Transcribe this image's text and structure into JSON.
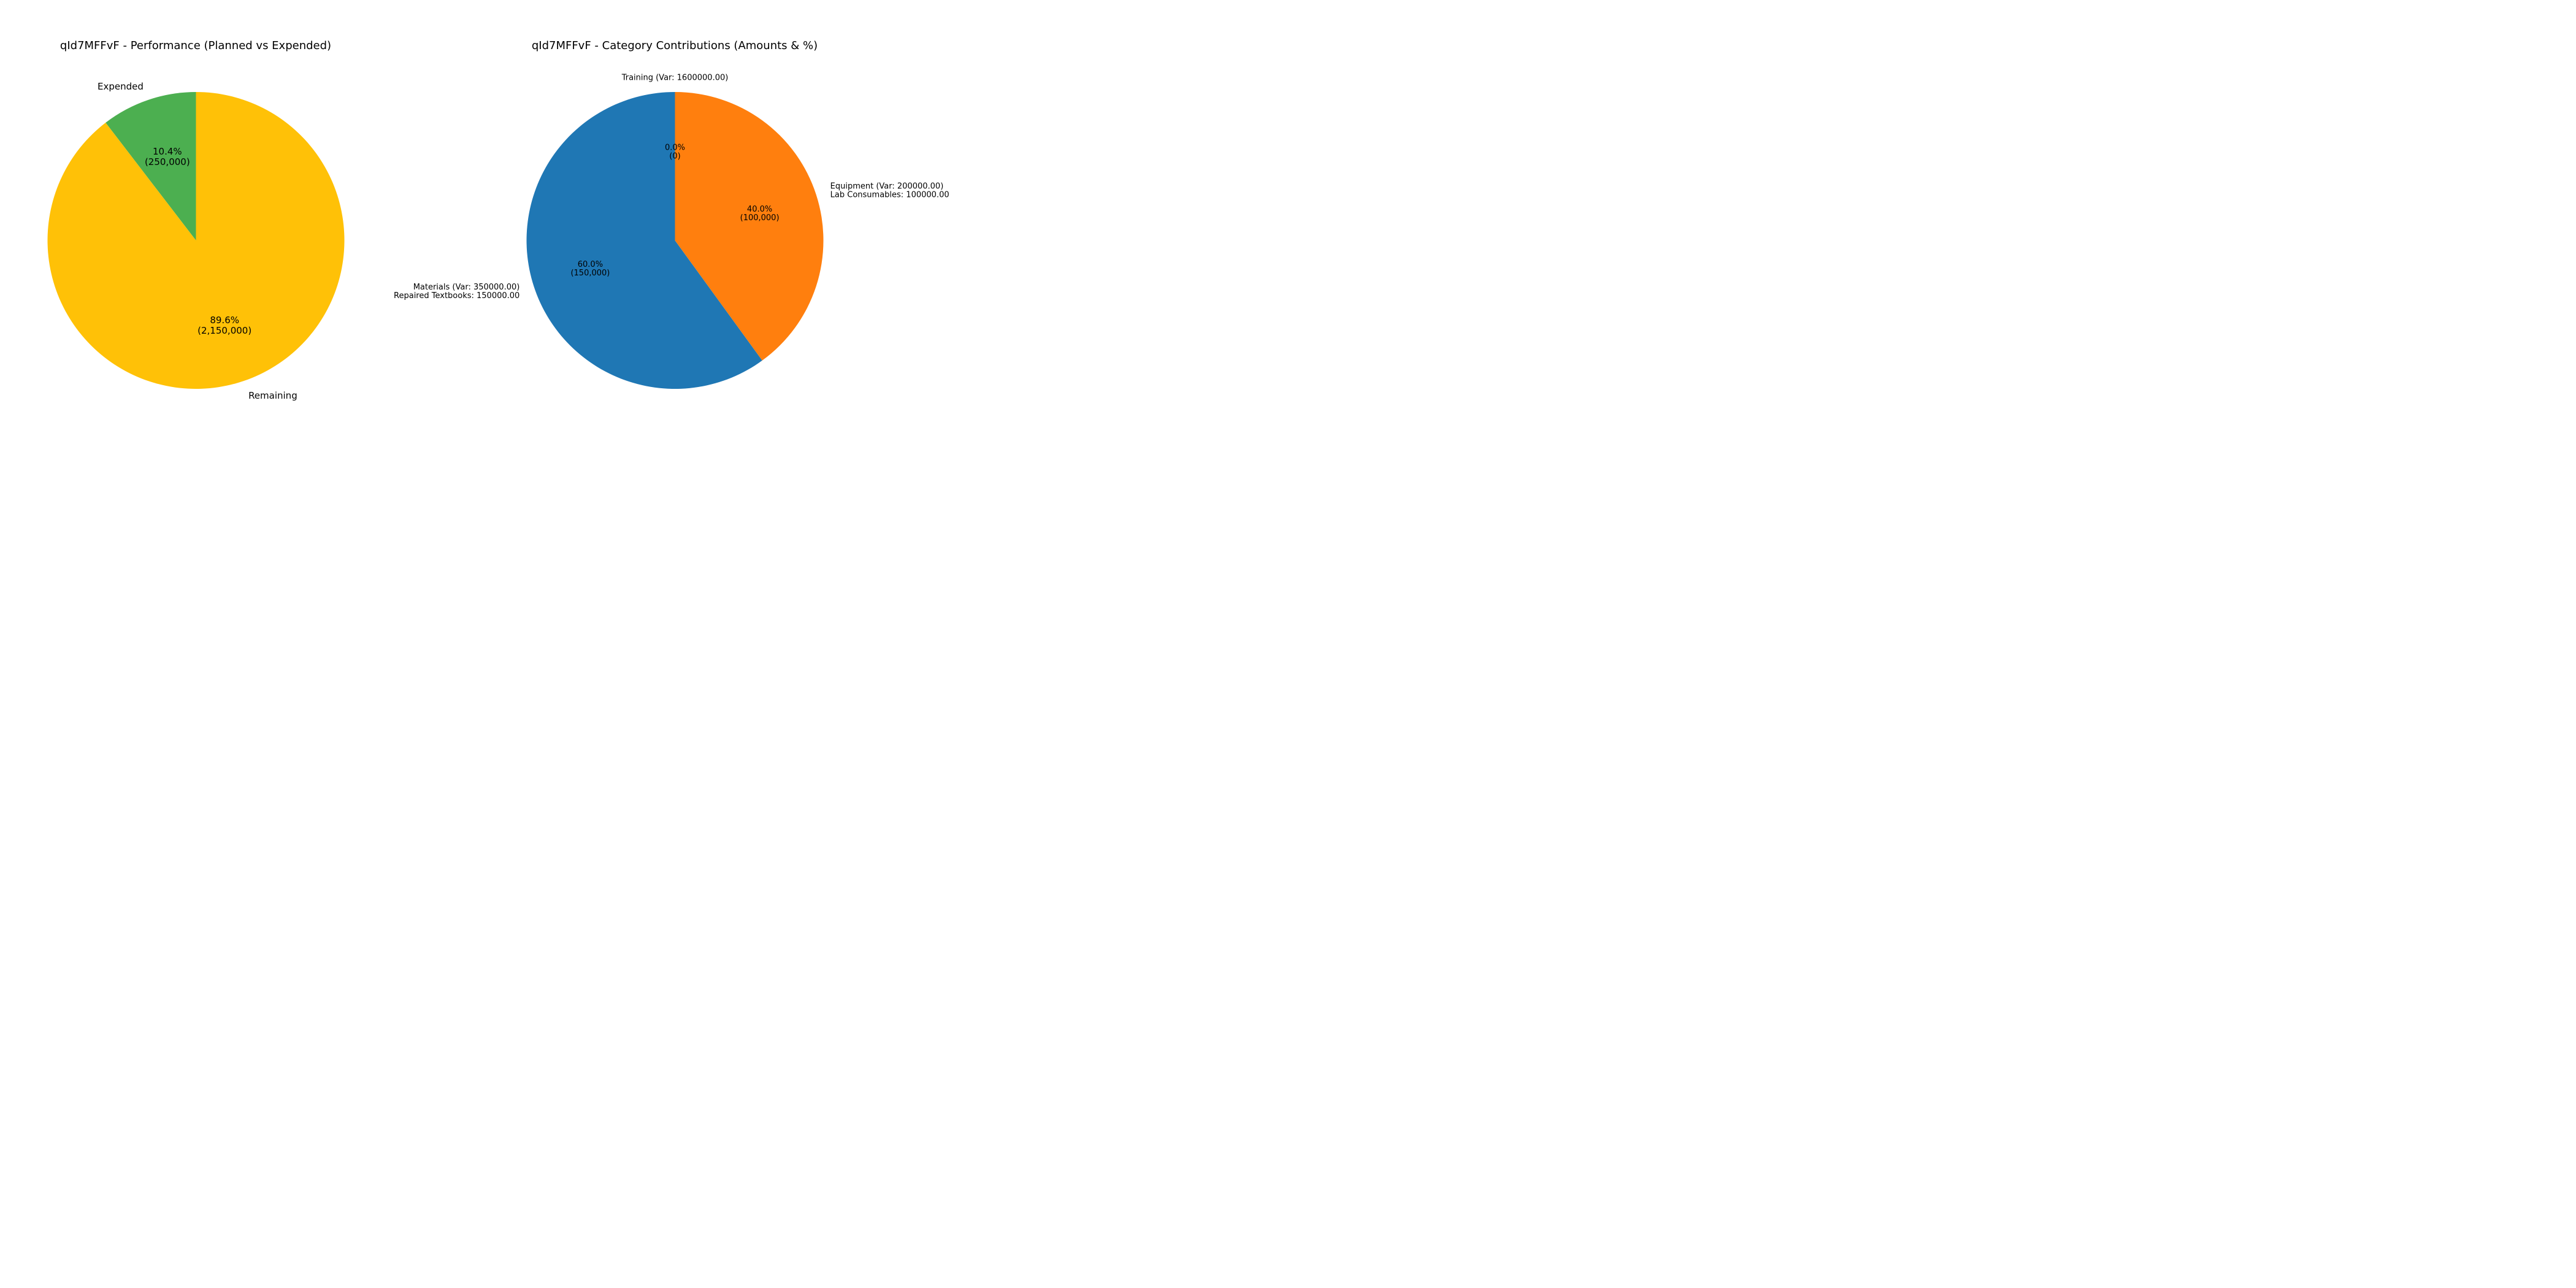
{
  "chart_data": [
    {
      "type": "pie",
      "title": "qId7MFFvF - Performance (Planned vs Expended)",
      "slices": [
        {
          "label": "Expended",
          "value": 250000,
          "percent_text": "10.4%",
          "amount_text": "(250,000)",
          "color": "#4CAF50"
        },
        {
          "label": "Remaining",
          "value": 2150000,
          "percent_text": "89.6%",
          "amount_text": "(2,150,000)",
          "color": "#FFC107"
        }
      ],
      "start_angle_deg": 90,
      "direction": "counterclockwise"
    },
    {
      "type": "pie",
      "title": "qId7MFFvF - Category Contributions (Amounts & %)",
      "slices": [
        {
          "label_lines": [
            "Training (Var: 1600000.00)"
          ],
          "value": 0,
          "percent_text": "0.0%",
          "amount_text": "(0)",
          "color": "#1f77b4"
        },
        {
          "label_lines": [
            "Materials (Var: 350000.00)",
            "Repaired Textbooks: 150000.00"
          ],
          "value": 150000,
          "percent_text": "60.0%",
          "amount_text": "(150,000)",
          "color": "#1f77b4"
        },
        {
          "label_lines": [
            "Equipment (Var: 200000.00)",
            "Lab Consumables: 100000.00"
          ],
          "value": 100000,
          "percent_text": "40.0%",
          "amount_text": "(100,000)",
          "color": "#ff7f0e"
        }
      ],
      "start_angle_deg": 90,
      "direction": "counterclockwise"
    }
  ]
}
